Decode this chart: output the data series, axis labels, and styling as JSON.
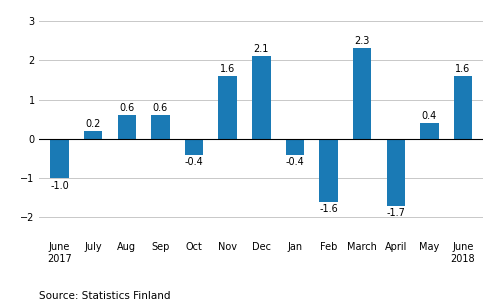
{
  "categories": [
    "June\n2017",
    "July",
    "Aug",
    "Sep",
    "Oct",
    "Nov",
    "Dec",
    "Jan",
    "Feb",
    "March",
    "April",
    "May",
    "June\n2018"
  ],
  "values": [
    -1.0,
    0.2,
    0.6,
    0.6,
    -0.4,
    1.6,
    2.1,
    -0.4,
    -1.6,
    2.3,
    -1.7,
    0.4,
    1.6
  ],
  "bar_color": "#1a7ab5",
  "ylim": [
    -2.5,
    3.3
  ],
  "yticks": [
    -2,
    -1,
    0,
    1,
    2,
    3
  ],
  "source_text": "Source: Statistics Finland",
  "label_fontsize": 7,
  "axis_fontsize": 7,
  "source_fontsize": 7.5,
  "bar_width": 0.55
}
